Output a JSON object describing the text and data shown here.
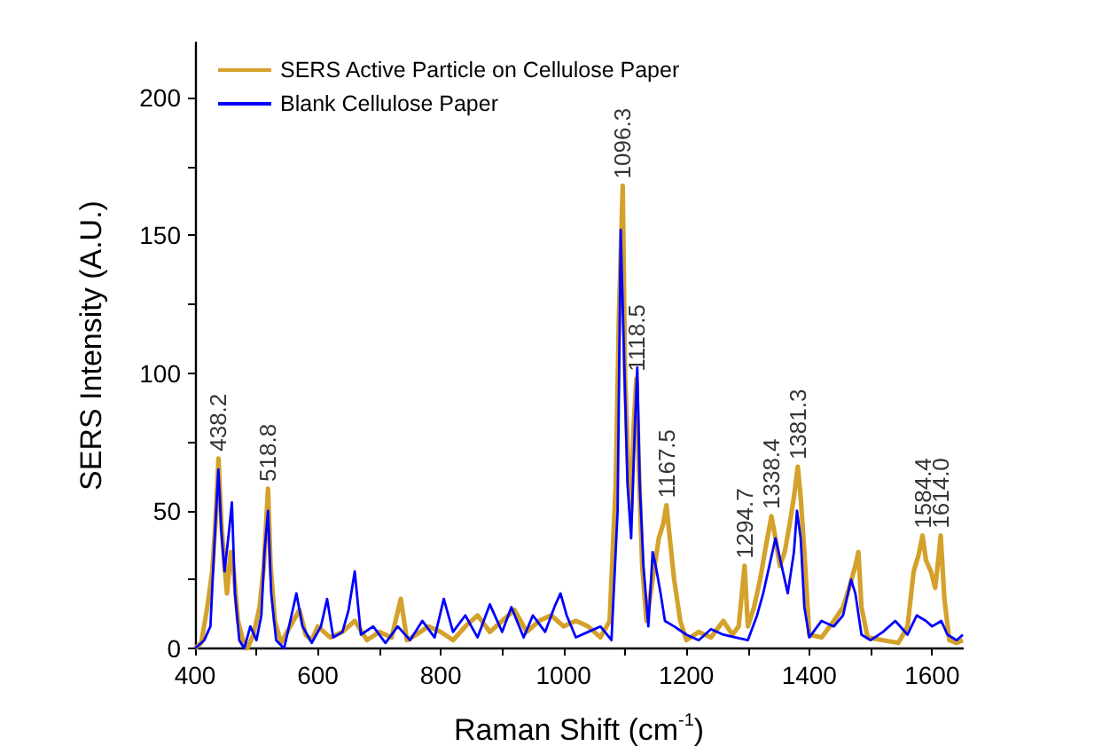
{
  "chart_data": {
    "type": "line",
    "xlabel": "Raman Shift (cm$^{-1}$)",
    "ylabel": "SERS Intensity (A.U.)",
    "xlim": [
      400,
      1650
    ],
    "ylim": [
      0,
      220
    ],
    "xticks": [
      400,
      {
        "value": 500,
        "label": null
      },
      600,
      {
        "value": 700,
        "label": null
      },
      800,
      {
        "value": 900,
        "label": null
      },
      1000,
      {
        "value": 1100,
        "label": null
      },
      1200,
      {
        "value": 1300,
        "label": null
      },
      1400,
      {
        "value": 1500,
        "label": null
      },
      1600
    ],
    "yticks": [
      0,
      {
        "value": 25,
        "label": null
      },
      50,
      {
        "value": 75,
        "label": null
      },
      100,
      {
        "value": 125,
        "label": null
      },
      150,
      {
        "value": 175,
        "label": null
      },
      200
    ],
    "grid": false,
    "legend": "top left",
    "marker": "none",
    "line_style": "solid",
    "series": [
      {
        "name": "SERS Active Particle on Cellulose Paper",
        "color": "#d4a12a",
        "x": [
          400,
          410,
          420,
          428,
          433,
          438.2,
          443,
          448,
          452,
          458,
          463,
          470,
          478,
          485,
          495,
          505,
          512,
          518.8,
          523,
          530,
          540,
          550,
          560,
          570,
          580,
          590,
          600,
          620,
          640,
          660,
          680,
          700,
          720,
          735,
          745,
          760,
          780,
          800,
          820,
          840,
          860,
          880,
          900,
          920,
          940,
          960,
          980,
          1000,
          1020,
          1040,
          1060,
          1075,
          1085,
          1090,
          1096.3,
          1100,
          1106,
          1110,
          1114,
          1118.5,
          1122,
          1128,
          1135,
          1145,
          1155,
          1162,
          1167.5,
          1172,
          1180,
          1190,
          1200,
          1220,
          1240,
          1260,
          1275,
          1285,
          1294.7,
          1300,
          1310,
          1320,
          1330,
          1338.4,
          1345,
          1352,
          1360,
          1368,
          1375,
          1381.3,
          1386,
          1392,
          1400,
          1420,
          1440,
          1455,
          1465,
          1475,
          1480,
          1485,
          1495,
          1520,
          1545,
          1560,
          1570,
          1578,
          1584.4,
          1590,
          1598,
          1605,
          1610,
          1614,
          1620,
          1628,
          1640,
          1650
        ],
        "values": [
          0,
          2,
          15,
          28,
          45,
          69,
          45,
          30,
          20,
          35,
          28,
          10,
          3,
          0,
          5,
          15,
          30,
          58,
          30,
          10,
          2,
          6,
          10,
          14,
          5,
          3,
          8,
          4,
          6,
          10,
          3,
          6,
          4,
          18,
          3,
          5,
          8,
          6,
          3,
          8,
          12,
          6,
          10,
          14,
          6,
          10,
          12,
          8,
          10,
          8,
          4,
          10,
          60,
          120,
          168,
          100,
          60,
          50,
          80,
          98,
          70,
          30,
          10,
          25,
          40,
          45,
          52,
          42,
          25,
          10,
          3,
          6,
          4,
          10,
          5,
          8,
          30,
          8,
          15,
          25,
          38,
          48,
          40,
          30,
          35,
          45,
          55,
          66,
          55,
          35,
          5,
          4,
          10,
          15,
          22,
          30,
          35,
          15,
          4,
          3,
          2,
          8,
          28,
          34,
          41,
          32,
          28,
          22,
          32,
          41,
          18,
          3,
          2,
          3
        ]
      },
      {
        "name": "Blank Cellulose Paper",
        "color": "#0000ff",
        "x": [
          400,
          415,
          425,
          432,
          438,
          443,
          448,
          455,
          460,
          465,
          472,
          480,
          490,
          500,
          508,
          513,
          518.8,
          524,
          532,
          545,
          560,
          565,
          575,
          590,
          605,
          615,
          625,
          640,
          650,
          660,
          670,
          690,
          710,
          730,
          750,
          770,
          790,
          805,
          820,
          840,
          860,
          880,
          900,
          915,
          935,
          950,
          970,
          985,
          995,
          1005,
          1020,
          1040,
          1060,
          1078,
          1088,
          1093,
          1098,
          1104,
          1110,
          1116,
          1120,
          1124,
          1130,
          1138,
          1145,
          1150,
          1158,
          1165,
          1180,
          1200,
          1220,
          1240,
          1260,
          1280,
          1300,
          1315,
          1325,
          1335,
          1345,
          1355,
          1365,
          1375,
          1380,
          1386,
          1392,
          1400,
          1420,
          1440,
          1455,
          1468,
          1475,
          1485,
          1500,
          1520,
          1540,
          1560,
          1575,
          1590,
          1600,
          1615,
          1625,
          1640,
          1650
        ],
        "values": [
          0,
          3,
          8,
          40,
          65,
          42,
          28,
          42,
          53,
          20,
          3,
          0,
          8,
          3,
          12,
          35,
          50,
          20,
          3,
          0,
          15,
          20,
          8,
          2,
          8,
          18,
          4,
          6,
          14,
          28,
          5,
          8,
          2,
          8,
          3,
          10,
          4,
          18,
          6,
          12,
          4,
          16,
          6,
          15,
          4,
          12,
          6,
          15,
          20,
          12,
          4,
          6,
          8,
          3,
          50,
          152,
          110,
          60,
          40,
          80,
          102,
          60,
          30,
          8,
          35,
          30,
          20,
          10,
          8,
          5,
          3,
          7,
          5,
          4,
          3,
          12,
          20,
          30,
          40,
          30,
          20,
          35,
          50,
          40,
          15,
          4,
          10,
          8,
          12,
          25,
          20,
          5,
          3,
          6,
          10,
          5,
          12,
          10,
          8,
          10,
          5,
          3,
          5
        ]
      }
    ],
    "annotations": [
      {
        "text": "438.2",
        "x": 438.2,
        "y": 69
      },
      {
        "text": "518.8",
        "x": 518.8,
        "y": 58
      },
      {
        "text": "1096.3",
        "x": 1096.3,
        "y": 168
      },
      {
        "text": "1118.5",
        "x": 1118.5,
        "y": 98
      },
      {
        "text": "1167.5",
        "x": 1167.5,
        "y": 52
      },
      {
        "text": "1294.7",
        "x": 1294.7,
        "y": 30
      },
      {
        "text": "1338.4",
        "x": 1338.4,
        "y": 48
      },
      {
        "text": "1381.3",
        "x": 1381.3,
        "y": 66
      },
      {
        "text": "1584.4",
        "x": 1584.4,
        "y": 41
      },
      {
        "text": "1614.0",
        "x": 1614,
        "y": 41
      }
    ]
  }
}
